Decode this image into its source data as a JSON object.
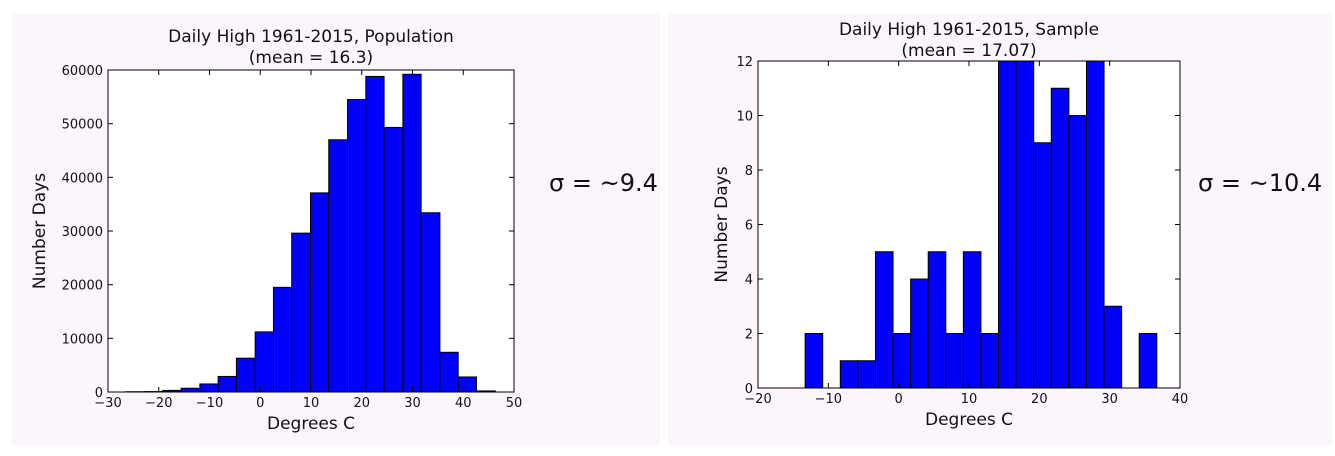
{
  "chart_data": [
    {
      "type": "bar",
      "title": "Daily High 1961-2015, Population",
      "subtitle": "(mean = 16.3)",
      "xlabel": "Degrees C",
      "ylabel": "Number Days",
      "xlim": [
        -30,
        50
      ],
      "ylim": [
        0,
        60000
      ],
      "xticks": [
        -30,
        -20,
        -10,
        0,
        10,
        20,
        30,
        40,
        50
      ],
      "yticks": [
        0,
        10000,
        20000,
        30000,
        40000,
        50000,
        60000
      ],
      "xtick_labels": [
        "−30",
        "−20",
        "−10",
        "0",
        "10",
        "20",
        "30",
        "40",
        "50"
      ],
      "ytick_labels": [
        "0",
        "10000",
        "20000",
        "30000",
        "40000",
        "50000",
        "60000"
      ],
      "grid": false,
      "bar_color": "#0000ff",
      "bins": [
        {
          "x0": -26.5,
          "x1": -22.9,
          "value": 50
        },
        {
          "x0": -22.9,
          "x1": -19.2,
          "value": 80
        },
        {
          "x0": -19.2,
          "x1": -15.6,
          "value": 300
        },
        {
          "x0": -15.6,
          "x1": -11.9,
          "value": 700
        },
        {
          "x0": -11.9,
          "x1": -8.3,
          "value": 1500
        },
        {
          "x0": -8.3,
          "x1": -4.7,
          "value": 2900
        },
        {
          "x0": -4.7,
          "x1": -1.0,
          "value": 6300
        },
        {
          "x0": -1.0,
          "x1": 2.6,
          "value": 11200
        },
        {
          "x0": 2.6,
          "x1": 6.2,
          "value": 19500
        },
        {
          "x0": 6.2,
          "x1": 9.9,
          "value": 29600
        },
        {
          "x0": 9.9,
          "x1": 13.5,
          "value": 37100
        },
        {
          "x0": 13.5,
          "x1": 17.2,
          "value": 47000
        },
        {
          "x0": 17.2,
          "x1": 20.8,
          "value": 54500
        },
        {
          "x0": 20.8,
          "x1": 24.4,
          "value": 58800
        },
        {
          "x0": 24.4,
          "x1": 28.1,
          "value": 49300
        },
        {
          "x0": 28.1,
          "x1": 31.7,
          "value": 59200
        },
        {
          "x0": 31.7,
          "x1": 35.4,
          "value": 33400
        },
        {
          "x0": 35.4,
          "x1": 39.0,
          "value": 7400
        },
        {
          "x0": 39.0,
          "x1": 42.6,
          "value": 2800
        },
        {
          "x0": 42.6,
          "x1": 46.3,
          "value": 200
        }
      ],
      "annotation": "σ = ~9.4"
    },
    {
      "type": "bar",
      "title": "Daily High 1961-2015, Sample",
      "subtitle": "(mean = 17.07)",
      "xlabel": "Degrees C",
      "ylabel": "Number Days",
      "xlim": [
        -20,
        40
      ],
      "ylim": [
        0,
        12
      ],
      "xticks": [
        -20,
        -10,
        0,
        10,
        20,
        30,
        40
      ],
      "yticks": [
        0,
        2,
        4,
        6,
        8,
        10,
        12
      ],
      "xtick_labels": [
        "−20",
        "−10",
        "0",
        "10",
        "20",
        "30",
        "40"
      ],
      "ytick_labels": [
        "0",
        "2",
        "4",
        "6",
        "8",
        "10",
        "12"
      ],
      "grid": false,
      "bar_color": "#0000ff",
      "bins": [
        {
          "x0": -13.3,
          "x1": -10.8,
          "value": 2
        },
        {
          "x0": -8.3,
          "x1": -5.8,
          "value": 1
        },
        {
          "x0": -5.8,
          "x1": -3.3,
          "value": 1
        },
        {
          "x0": -3.3,
          "x1": -0.8,
          "value": 5
        },
        {
          "x0": -0.8,
          "x1": 1.7,
          "value": 2
        },
        {
          "x0": 1.7,
          "x1": 4.2,
          "value": 4
        },
        {
          "x0": 4.2,
          "x1": 6.7,
          "value": 5
        },
        {
          "x0": 6.7,
          "x1": 9.2,
          "value": 2
        },
        {
          "x0": 9.2,
          "x1": 11.7,
          "value": 5
        },
        {
          "x0": 11.7,
          "x1": 14.2,
          "value": 2
        },
        {
          "x0": 14.2,
          "x1": 16.7,
          "value": 12
        },
        {
          "x0": 16.7,
          "x1": 19.2,
          "value": 12
        },
        {
          "x0": 19.2,
          "x1": 21.7,
          "value": 9
        },
        {
          "x0": 21.7,
          "x1": 24.2,
          "value": 11
        },
        {
          "x0": 24.2,
          "x1": 26.7,
          "value": 10
        },
        {
          "x0": 26.7,
          "x1": 29.2,
          "value": 12
        },
        {
          "x0": 29.2,
          "x1": 31.7,
          "value": 3
        },
        {
          "x0": 34.2,
          "x1": 36.7,
          "value": 2
        }
      ],
      "annotation": "σ = ~10.4"
    }
  ]
}
